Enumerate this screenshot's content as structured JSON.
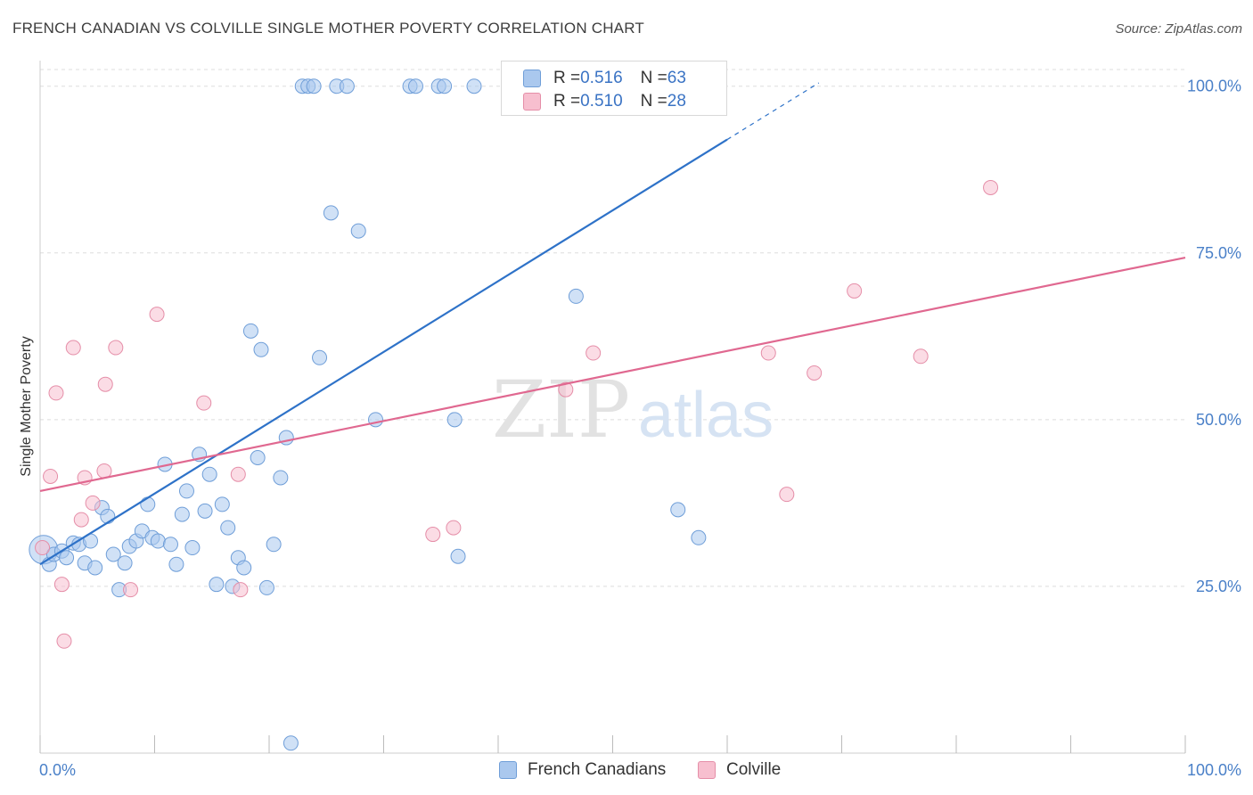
{
  "title": "FRENCH CANADIAN VS COLVILLE SINGLE MOTHER POVERTY CORRELATION CHART",
  "source": "Source: ZipAtlas.com",
  "watermark": {
    "zip": "ZIP",
    "atlas": "atlas"
  },
  "stats": [
    {
      "r_label": "R = ",
      "r_value": "0.516",
      "n_label": "N = ",
      "n_value": "63"
    },
    {
      "r_label": "R = ",
      "r_value": "0.510",
      "n_label": "N = ",
      "n_value": "28"
    }
  ],
  "legend": [
    {
      "label": "French Canadians"
    },
    {
      "label": "Colville"
    }
  ],
  "colors": {
    "blue_fill": "#aac8ee",
    "blue_stroke": "#6f9ed8",
    "blue_line": "#2e72c8",
    "pink_fill": "#f7bfcf",
    "pink_stroke": "#e58ea8",
    "pink_line": "#e06890",
    "axis_text": "#4a80c8",
    "grid": "#dddddd"
  },
  "chart_data": {
    "type": "scatter",
    "title": "FRENCH CANADIAN VS COLVILLE SINGLE MOTHER POVERTY CORRELATION CHART",
    "xlabel": "",
    "ylabel": "Single Mother Poverty",
    "xlim": [
      0,
      100
    ],
    "ylim": [
      0,
      102.5
    ],
    "x_tick_labels": [
      "0.0%",
      "100.0%"
    ],
    "y_tick_labels": [
      "25.0%",
      "50.0%",
      "75.0%",
      "100.0%"
    ],
    "y_ticks": [
      25,
      50,
      75,
      100
    ],
    "grid": true,
    "legend_position": "bottom",
    "series": [
      {
        "name": "French Canadians",
        "trendline": {
          "x": [
            0,
            60
          ],
          "y": [
            28.3,
            92
          ],
          "dashed_to": [
            68,
            100.5
          ]
        },
        "points": [
          [
            0.3,
            30.5,
            "large"
          ],
          [
            0.8,
            28.3
          ],
          [
            1.2,
            29.8
          ],
          [
            1.9,
            30.3
          ],
          [
            2.3,
            29.3
          ],
          [
            2.9,
            31.5
          ],
          [
            3.4,
            31.3
          ],
          [
            3.9,
            28.5
          ],
          [
            4.4,
            31.8
          ],
          [
            4.8,
            27.8
          ],
          [
            5.4,
            36.8
          ],
          [
            5.9,
            35.5
          ],
          [
            6.4,
            29.8
          ],
          [
            6.9,
            24.5
          ],
          [
            7.4,
            28.5
          ],
          [
            7.8,
            31.0
          ],
          [
            8.4,
            31.8
          ],
          [
            8.9,
            33.3
          ],
          [
            9.4,
            37.3
          ],
          [
            9.8,
            32.3
          ],
          [
            10.3,
            31.8
          ],
          [
            10.9,
            43.3
          ],
          [
            11.4,
            31.3
          ],
          [
            11.9,
            28.3
          ],
          [
            12.4,
            35.8
          ],
          [
            12.8,
            39.3
          ],
          [
            13.3,
            30.8
          ],
          [
            13.9,
            44.8
          ],
          [
            14.4,
            36.3
          ],
          [
            14.8,
            41.8
          ],
          [
            15.4,
            25.3
          ],
          [
            15.9,
            37.3
          ],
          [
            16.4,
            33.8
          ],
          [
            16.8,
            25.0
          ],
          [
            17.3,
            29.3
          ],
          [
            17.8,
            27.8
          ],
          [
            18.4,
            63.3
          ],
          [
            19.0,
            44.3
          ],
          [
            19.3,
            60.5
          ],
          [
            19.8,
            24.8
          ],
          [
            20.4,
            31.3
          ],
          [
            21.0,
            41.3
          ],
          [
            21.5,
            47.3
          ],
          [
            21.9,
            1.5
          ],
          [
            22.9,
            100
          ],
          [
            23.4,
            100
          ],
          [
            23.9,
            100
          ],
          [
            24.4,
            59.3
          ],
          [
            25.4,
            81.0
          ],
          [
            25.9,
            100
          ],
          [
            26.8,
            100
          ],
          [
            27.8,
            78.3
          ],
          [
            29.3,
            50.0
          ],
          [
            32.3,
            100
          ],
          [
            32.8,
            100
          ],
          [
            34.8,
            100
          ],
          [
            35.3,
            100
          ],
          [
            36.2,
            50.0
          ],
          [
            36.5,
            29.5
          ],
          [
            37.9,
            100
          ],
          [
            46.8,
            68.5
          ],
          [
            55.7,
            36.5
          ],
          [
            57.5,
            32.3
          ]
        ]
      },
      {
        "name": "Colville",
        "trendline": {
          "x": [
            0,
            100
          ],
          "y": [
            39.3,
            74.3
          ]
        },
        "points": [
          [
            0.2,
            30.8
          ],
          [
            0.9,
            41.5
          ],
          [
            1.4,
            54.0
          ],
          [
            1.9,
            25.3
          ],
          [
            2.1,
            16.8
          ],
          [
            2.9,
            60.8
          ],
          [
            3.6,
            35.0
          ],
          [
            3.9,
            41.3
          ],
          [
            4.6,
            37.5
          ],
          [
            5.6,
            42.3
          ],
          [
            5.7,
            55.3
          ],
          [
            6.6,
            60.8
          ],
          [
            7.9,
            24.5
          ],
          [
            10.2,
            65.8
          ],
          [
            14.3,
            52.5
          ],
          [
            17.3,
            41.8
          ],
          [
            17.5,
            24.5
          ],
          [
            34.3,
            32.8
          ],
          [
            36.1,
            33.8
          ],
          [
            42.3,
            100
          ],
          [
            45.9,
            54.5
          ],
          [
            48.3,
            60.0
          ],
          [
            63.6,
            60.0
          ],
          [
            65.2,
            38.8
          ],
          [
            67.6,
            57.0
          ],
          [
            71.1,
            69.3
          ],
          [
            76.9,
            59.5
          ],
          [
            83.0,
            84.8
          ]
        ]
      }
    ]
  }
}
